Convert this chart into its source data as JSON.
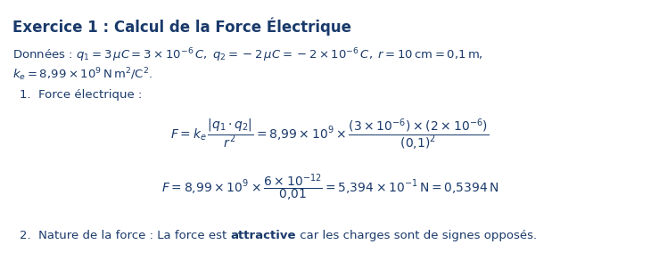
{
  "title": "Exercice 1 : Calcul de la Force Électrique",
  "bg_color": "#ffffff",
  "text_color": "#1a3a6b",
  "fig_width": 7.39,
  "fig_height": 3.11,
  "dpi": 100,
  "title_fontsize": 12,
  "body_fontsize": 9.5,
  "eq_fontsize": 10,
  "line1": "Données : $q_1 = 3\\,\\mu C = 3 \\times 10^{-6}\\,C,\\; q_2 = -2\\,\\mu C = -2 \\times 10^{-6}\\,C,\\; r = 10\\,\\mathrm{cm} = 0{,}1\\,\\mathrm{m},$",
  "line2": "$k_e = 8{,}99 \\times 10^{9}\\,\\mathrm{N}\\,\\mathrm{m}^2/\\mathrm{C}^2.$",
  "item1": "1.  Force électrique :",
  "eq1": "$F = k_e\\,\\dfrac{|q_1 \\cdot q_2|}{r^2} = 8{,}99 \\times 10^{9} \\times \\dfrac{(3 \\times 10^{-6}) \\times (2 \\times 10^{-6})}{(0{,}1)^2}$",
  "eq2": "$F = 8{,}99 \\times 10^{9} \\times \\dfrac{6 \\times 10^{-12}}{0{,}01} = 5{,}394 \\times 10^{-1}\\,\\mathrm{N} = 0{,}5394\\,\\mathrm{N}$",
  "item2_pre": "2.  Nature de la force : La force est ",
  "item2_bold": "attractive",
  "item2_post": " car les charges sont de signes opposés."
}
